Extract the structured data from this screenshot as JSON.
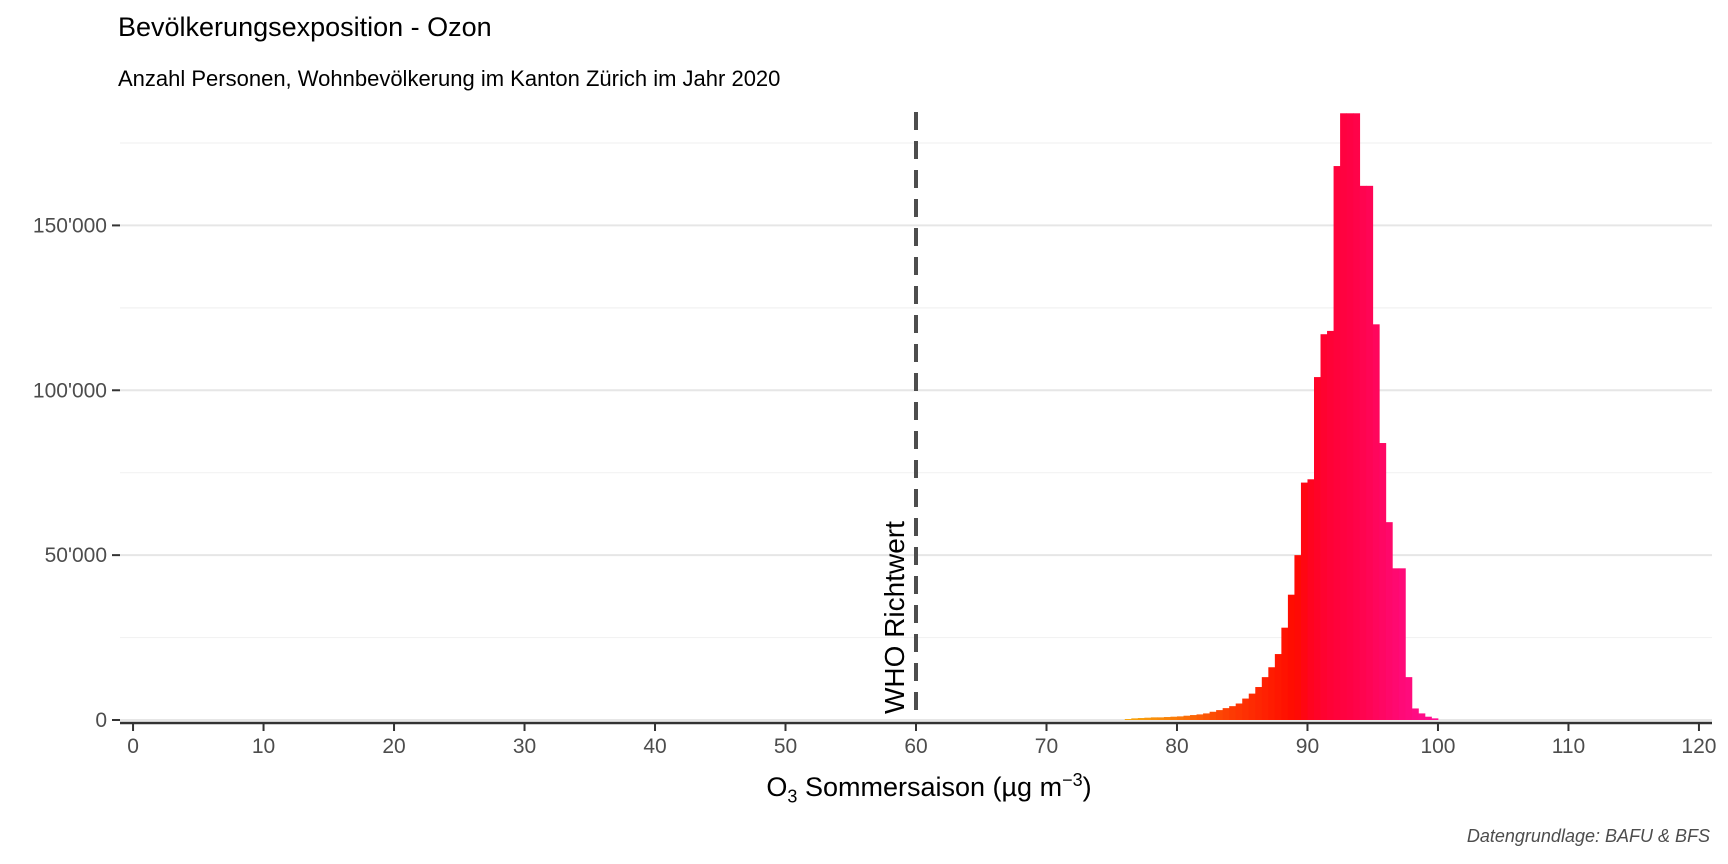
{
  "header": {
    "title": "Bevölkerungsexposition - Ozon",
    "subtitle": "Anzahl Personen, Wohnbevölkerung im Kanton Zürich im Jahr 2020"
  },
  "footer": {
    "caption": "Datengrundlage: BAFU & BFS"
  },
  "axis": {
    "x_main": "O",
    "x_sub": "3",
    "x_rest": " Sommersaison (µg m",
    "x_sup": "−3",
    "x_close": ")"
  },
  "chart_data": {
    "type": "bar",
    "title": "Bevölkerungsexposition - Ozon",
    "subtitle": "Anzahl Personen, Wohnbevölkerung im Kanton Zürich im Jahr 2020",
    "xlabel": "O3 Sommersaison (µg m−3)",
    "ylabel": "",
    "xlim": [
      -1,
      121
    ],
    "ylim": [
      0,
      185000
    ],
    "x_ticks": [
      0,
      10,
      20,
      30,
      40,
      50,
      60,
      70,
      80,
      90,
      100,
      110,
      120
    ],
    "x_tick_labels": [
      "0",
      "10",
      "20",
      "30",
      "40",
      "50",
      "60",
      "70",
      "80",
      "90",
      "100",
      "110",
      "120"
    ],
    "y_ticks": [
      0,
      50000,
      100000,
      150000
    ],
    "y_tick_labels": [
      "0",
      "50'000",
      "100'000",
      "150'000"
    ],
    "grid": true,
    "bin_width": 0.5,
    "x": [
      76.0,
      76.5,
      77.0,
      77.5,
      78.0,
      78.5,
      79.0,
      79.5,
      80.0,
      80.5,
      81.0,
      81.5,
      82.0,
      82.5,
      83.0,
      83.5,
      84.0,
      84.5,
      85.0,
      85.5,
      86.0,
      86.5,
      87.0,
      87.5,
      88.0,
      88.5,
      89.0,
      89.5,
      90.0,
      90.5,
      91.0,
      91.5,
      92.0,
      92.5,
      93.0,
      93.5,
      94.0,
      94.5,
      95.0,
      95.5,
      96.0,
      96.5,
      97.0,
      97.5,
      98.0,
      98.5,
      99.0,
      99.5
    ],
    "values": [
      300,
      500,
      600,
      700,
      800,
      800,
      900,
      1000,
      1100,
      1300,
      1500,
      1700,
      2000,
      2500,
      3000,
      3600,
      4200,
      5000,
      6500,
      8000,
      10000,
      13000,
      16000,
      20000,
      28000,
      38000,
      50000,
      72000,
      73000,
      104000,
      117000,
      118000,
      168000,
      184000,
      184000,
      184000,
      162000,
      162000,
      120000,
      84000,
      60000,
      46000,
      46000,
      13000,
      3500,
      2000,
      1000,
      500
    ],
    "colors": [
      "#f7a50d",
      "#f7a00d",
      "#f79c0c",
      "#f8970c",
      "#f8900b",
      "#f98a0a",
      "#f98309",
      "#fa7c08",
      "#fa7508",
      "#fb6d07",
      "#fb6506",
      "#fc5d05",
      "#fc5505",
      "#fc4d04",
      "#fd4604",
      "#fd4004",
      "#fd3a03",
      "#fe3503",
      "#fe3003",
      "#fe2b02",
      "#fe2602",
      "#ff2102",
      "#ff1c01",
      "#ff1701",
      "#ff1201",
      "#ff0d01",
      "#ff0a05",
      "#ff0612",
      "#ff041f",
      "#ff0327",
      "#ff0230",
      "#ff0236",
      "#ff023b",
      "#ff0240",
      "#ff0244",
      "#ff0349",
      "#ff044f",
      "#ff0555",
      "#ff065c",
      "#ff0763",
      "#ff086a",
      "#ff0970",
      "#ff0a77",
      "#ff0b7c",
      "#ff0c82",
      "#ff0d88",
      "#ff0e8d",
      "#ff0f92"
    ],
    "reference_line": {
      "x": 60,
      "label": "WHO Richtwert",
      "style": "dashed"
    },
    "caption": "Datengrundlage: BAFU & BFS"
  }
}
